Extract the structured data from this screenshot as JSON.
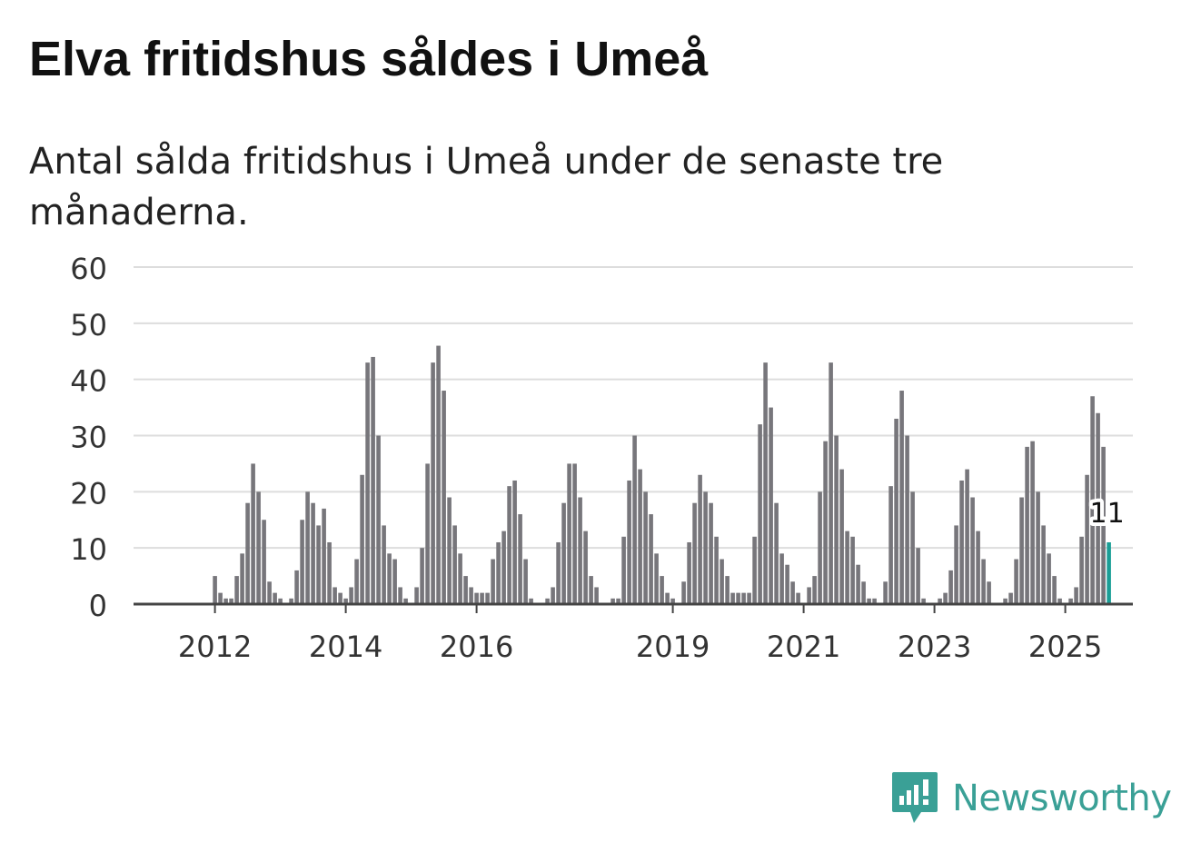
{
  "title": "Elva fritidshus såldes i Umeå",
  "subtitle": "Antal sålda fritidshus i Umeå under de senaste tre månaderna.",
  "brand": {
    "name": "Newsworthy",
    "color": "#3aa096"
  },
  "colors": {
    "bar": "#77767b",
    "highlight": "#1a9e96",
    "grid": "#dddddd",
    "axis": "#444444"
  },
  "chart_data": {
    "type": "bar",
    "title": "Elva fritidshus såldes i Umeå",
    "xlabel": "",
    "ylabel": "",
    "ylim": [
      0,
      60
    ],
    "yticks": [
      0,
      10,
      20,
      30,
      40,
      50,
      60
    ],
    "xtick_labels": [
      "2012",
      "2014",
      "2016",
      "2019",
      "2021",
      "2023",
      "2025"
    ],
    "xtick_years": [
      2012,
      2014,
      2016,
      2019,
      2021,
      2023,
      2025
    ],
    "start": "2011-01",
    "end": "2025-09",
    "highlight": {
      "label": "11",
      "value": 11
    },
    "values": [
      0,
      0,
      0,
      0,
      0,
      0,
      0,
      0,
      0,
      0,
      0,
      0,
      5,
      2,
      1,
      1,
      5,
      9,
      18,
      25,
      20,
      15,
      4,
      2,
      1,
      0,
      1,
      6,
      15,
      20,
      18,
      14,
      17,
      11,
      3,
      2,
      1,
      3,
      8,
      23,
      43,
      44,
      30,
      14,
      9,
      8,
      3,
      1,
      0,
      3,
      10,
      25,
      43,
      46,
      38,
      19,
      14,
      9,
      5,
      3,
      2,
      2,
      2,
      8,
      11,
      13,
      21,
      22,
      16,
      8,
      1,
      0,
      0,
      1,
      3,
      11,
      18,
      25,
      25,
      19,
      13,
      5,
      3,
      0,
      0,
      1,
      1,
      12,
      22,
      30,
      24,
      20,
      16,
      9,
      5,
      2,
      1,
      0,
      4,
      11,
      18,
      23,
      20,
      18,
      12,
      8,
      5,
      2,
      2,
      2,
      2,
      12,
      32,
      43,
      35,
      18,
      9,
      7,
      4,
      2,
      0,
      3,
      5,
      20,
      29,
      43,
      30,
      24,
      13,
      12,
      7,
      4,
      1,
      1,
      0,
      4,
      21,
      33,
      38,
      30,
      20,
      10,
      1,
      0,
      0,
      1,
      2,
      6,
      14,
      22,
      24,
      19,
      13,
      8,
      4,
      0,
      0,
      1,
      2,
      8,
      19,
      28,
      29,
      20,
      14,
      9,
      5,
      1,
      0,
      1,
      3,
      12,
      23,
      37,
      34,
      28,
      11
    ]
  }
}
